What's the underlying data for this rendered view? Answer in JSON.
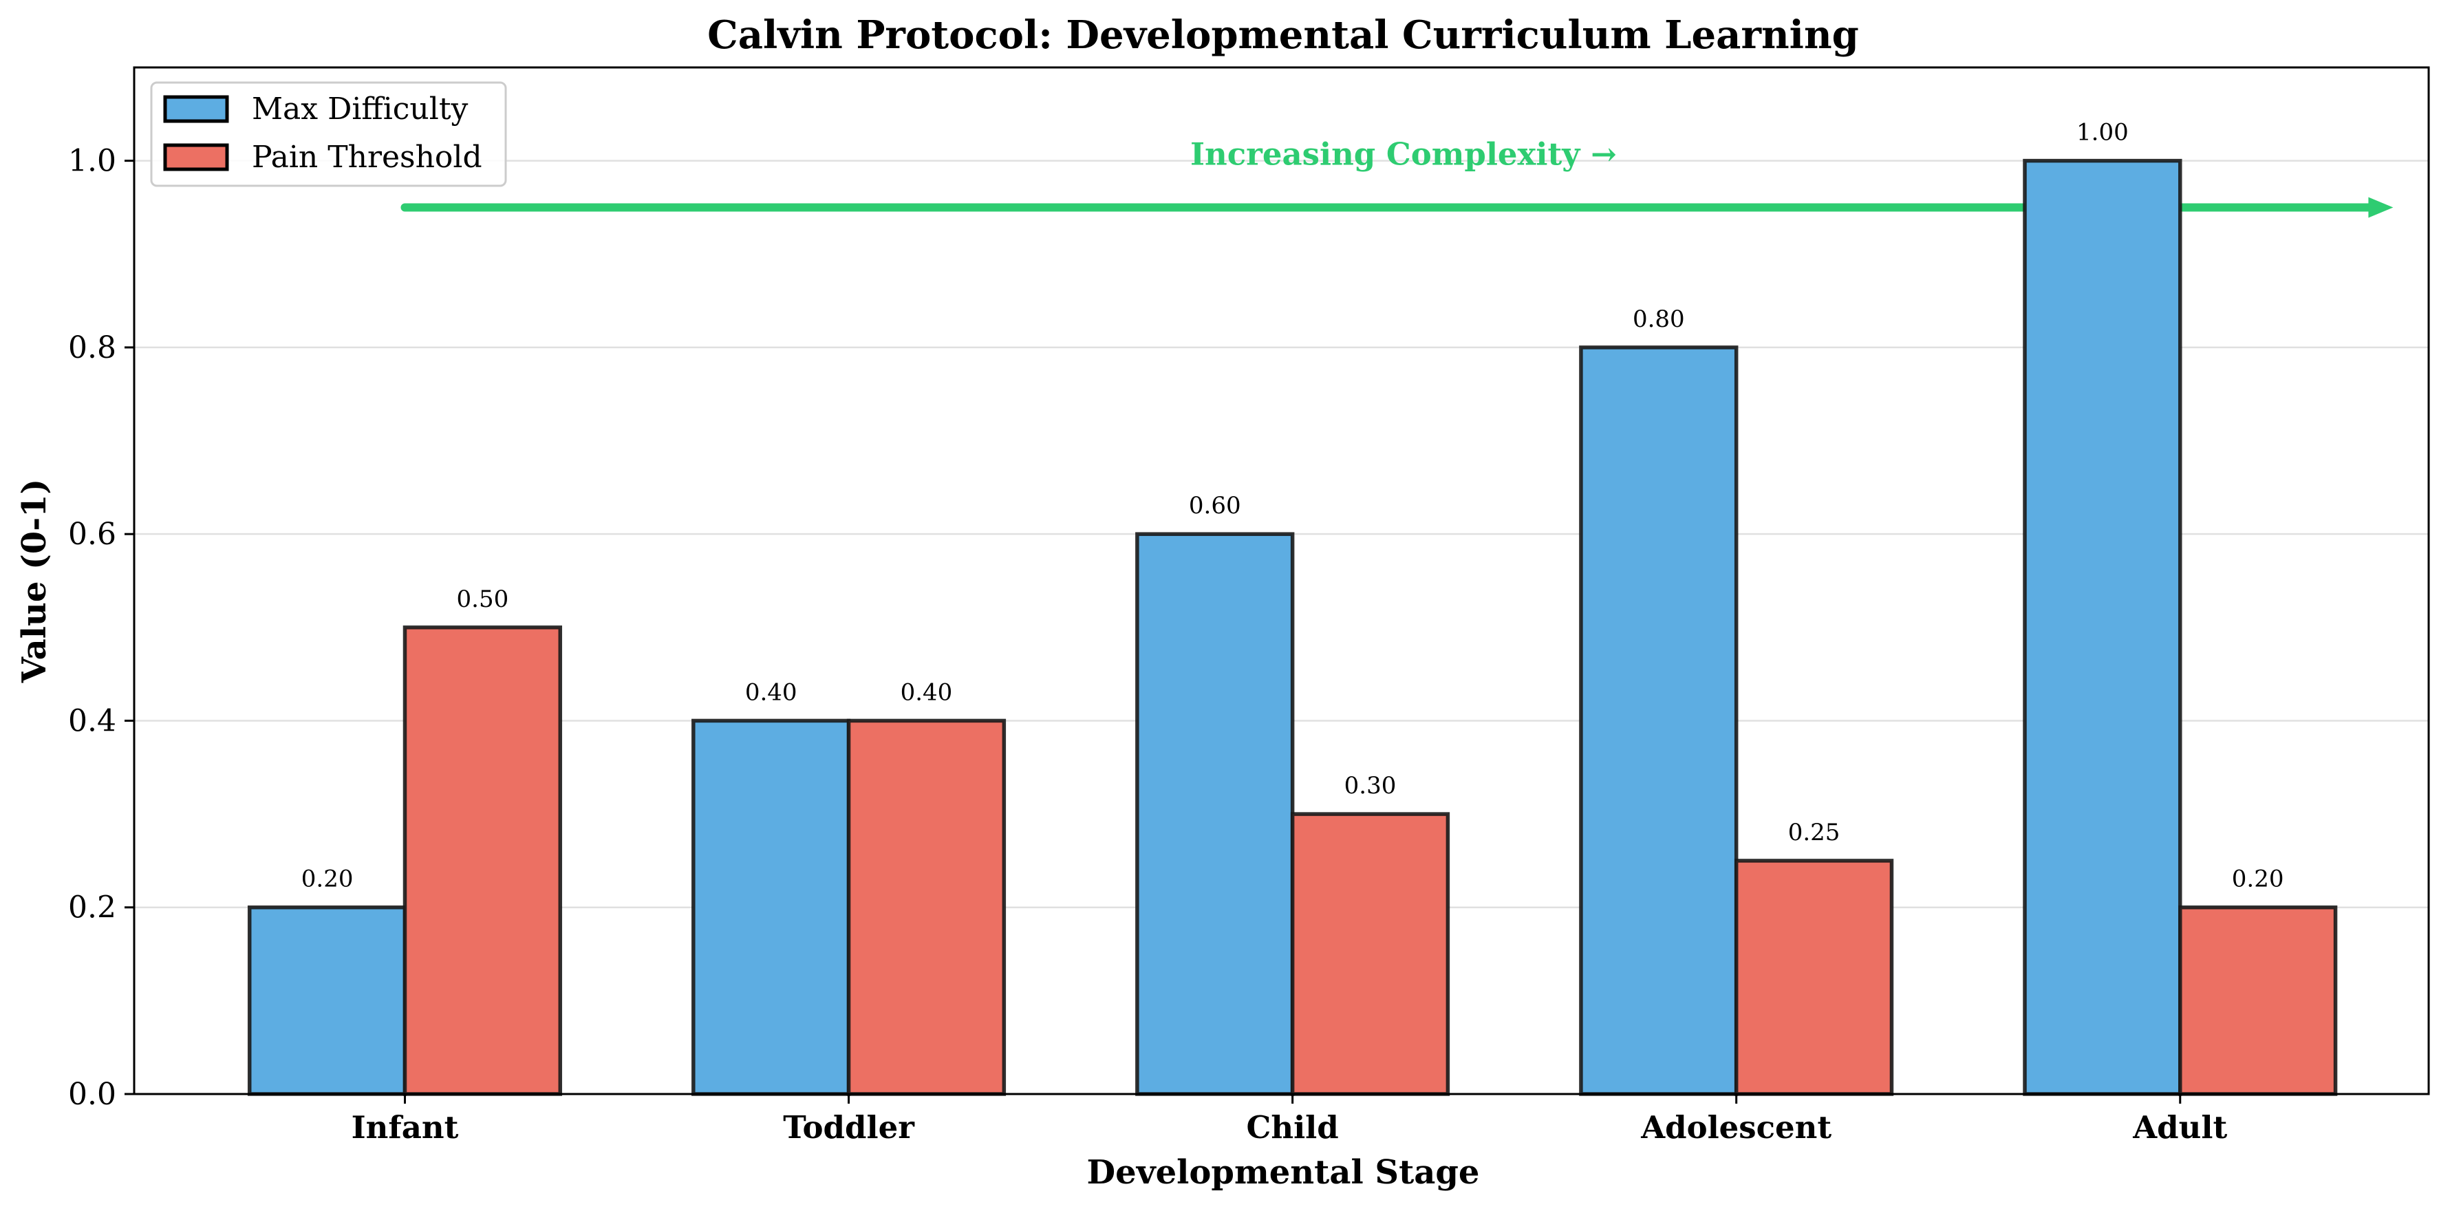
{
  "chart_data": {
    "type": "bar",
    "title": "Calvin Protocol: Developmental Curriculum Learning",
    "xlabel": "Developmental Stage",
    "ylabel": "Value (0-1)",
    "categories": [
      "Infant",
      "Toddler",
      "Child",
      "Adolescent",
      "Adult"
    ],
    "series": [
      {
        "name": "Max Difficulty",
        "values": [
          0.2,
          0.4,
          0.6,
          0.8,
          1.0
        ],
        "color": "#5DADE2"
      },
      {
        "name": "Pain Threshold",
        "values": [
          0.5,
          0.4,
          0.3,
          0.25,
          0.2
        ],
        "color": "#EC7063"
      }
    ],
    "value_labels": [
      [
        "0.20",
        "0.40",
        "0.60",
        "0.80",
        "1.00"
      ],
      [
        "0.50",
        "0.40",
        "0.30",
        "0.25",
        "0.20"
      ]
    ],
    "ylim": [
      0,
      1.1
    ],
    "yticks": [
      0.0,
      0.2,
      0.4,
      0.6,
      0.8,
      1.0
    ],
    "ytick_labels": [
      "0.0",
      "0.2",
      "0.4",
      "0.6",
      "0.8",
      "1.0"
    ],
    "grid": "horizontal",
    "legend_position": "upper-left",
    "annotation": {
      "text": "Increasing Complexity →",
      "color": "#2ECC71",
      "arrow_y": 0.95,
      "text_y": 1.0
    }
  }
}
